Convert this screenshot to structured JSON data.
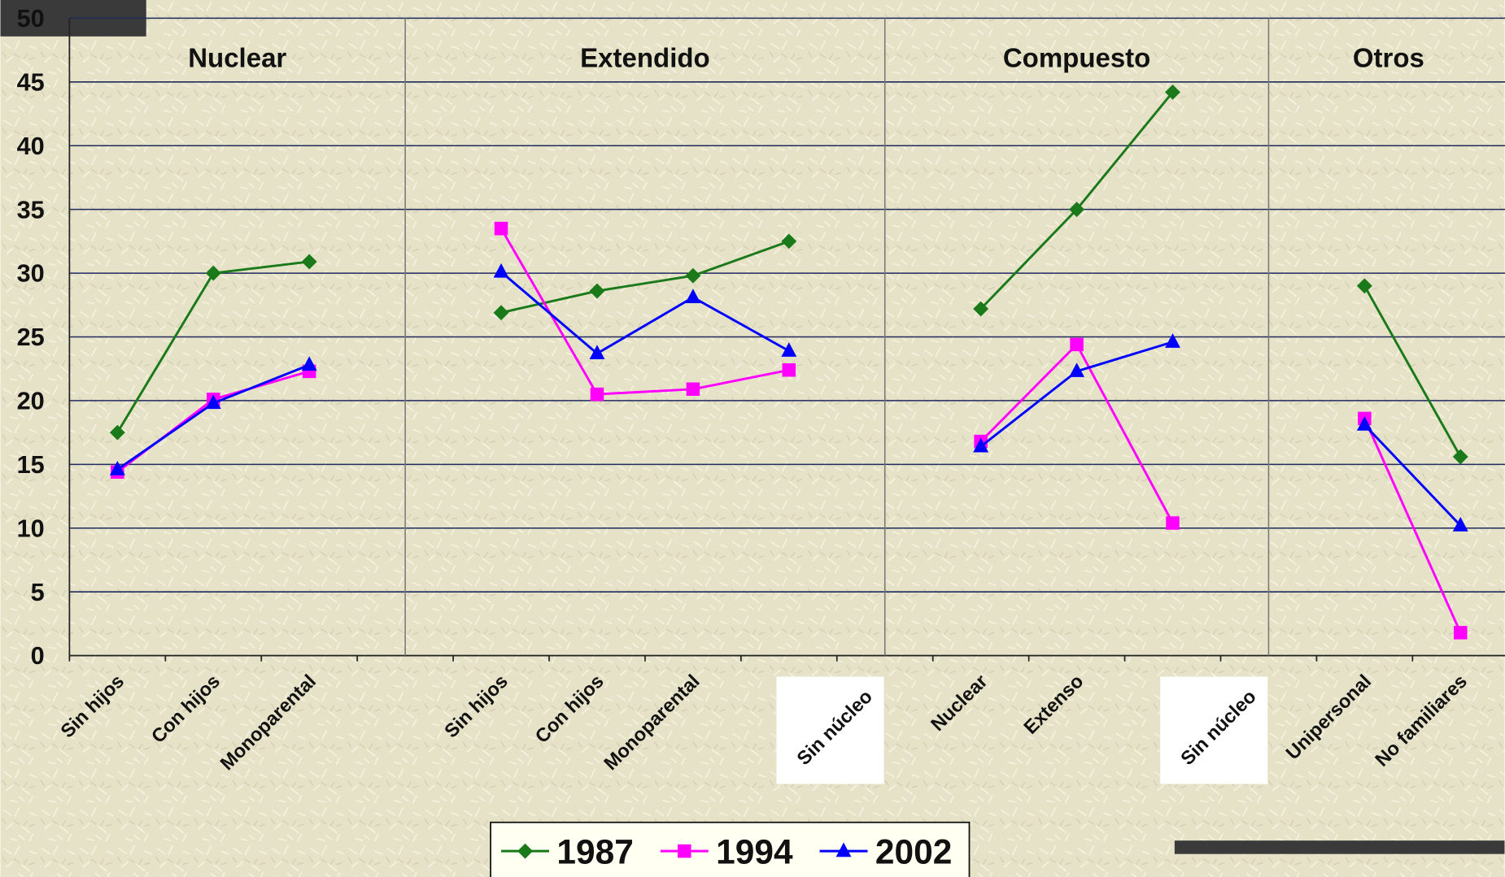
{
  "chart_data": {
    "type": "line",
    "groups": [
      "Nuclear",
      "Extendido",
      "Compuesto",
      "Otros"
    ],
    "categories": [
      "Sin hijos",
      "Con hijos",
      "Monoparental",
      null,
      "Sin hijos",
      "Con hijos",
      "Monoparental",
      "Sin núcleo",
      null,
      "Nuclear",
      "Extenso",
      "Sin núcleo",
      null,
      "Unipersonal",
      "No familiares"
    ],
    "series": [
      {
        "name": "1987",
        "color": "#1a7a1a",
        "marker": "diamond",
        "values": [
          17.5,
          30,
          30.9,
          null,
          26.9,
          28.6,
          29.8,
          32.5,
          null,
          27.2,
          35,
          44.2,
          null,
          29,
          15.6
        ]
      },
      {
        "name": "1994",
        "color": "#ff00ff",
        "marker": "square",
        "values": [
          14.4,
          20.1,
          22.3,
          null,
          33.5,
          20.5,
          20.9,
          22.4,
          null,
          16.8,
          24.4,
          10.4,
          null,
          18.6,
          1.8
        ]
      },
      {
        "name": "2002",
        "color": "#0000ff",
        "marker": "triangle",
        "values": [
          14.6,
          19.8,
          22.8,
          null,
          30.1,
          23.7,
          28.1,
          23.9,
          null,
          16.4,
          22.3,
          24.6,
          null,
          18.1,
          10.2
        ]
      }
    ],
    "ylim": [
      0,
      50
    ],
    "yticks": [
      0,
      5,
      10,
      15,
      20,
      25,
      30,
      35,
      40,
      45,
      50
    ],
    "grid": true,
    "legend": "bottom"
  }
}
